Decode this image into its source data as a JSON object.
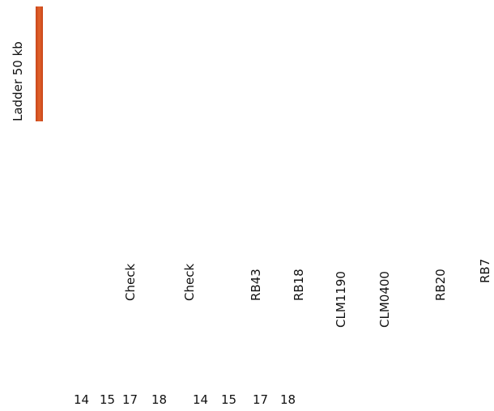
{
  "ladder_label": "Ladder 50 kb",
  "lanes": [
    "Check",
    "Check",
    "RB43",
    "RB18",
    "CLM1190",
    "CLM0400",
    "RB20",
    "RB7"
  ],
  "numbers": [
    "14",
    "15",
    "17",
    "18",
    "14",
    "15",
    "17",
    "18"
  ]
}
